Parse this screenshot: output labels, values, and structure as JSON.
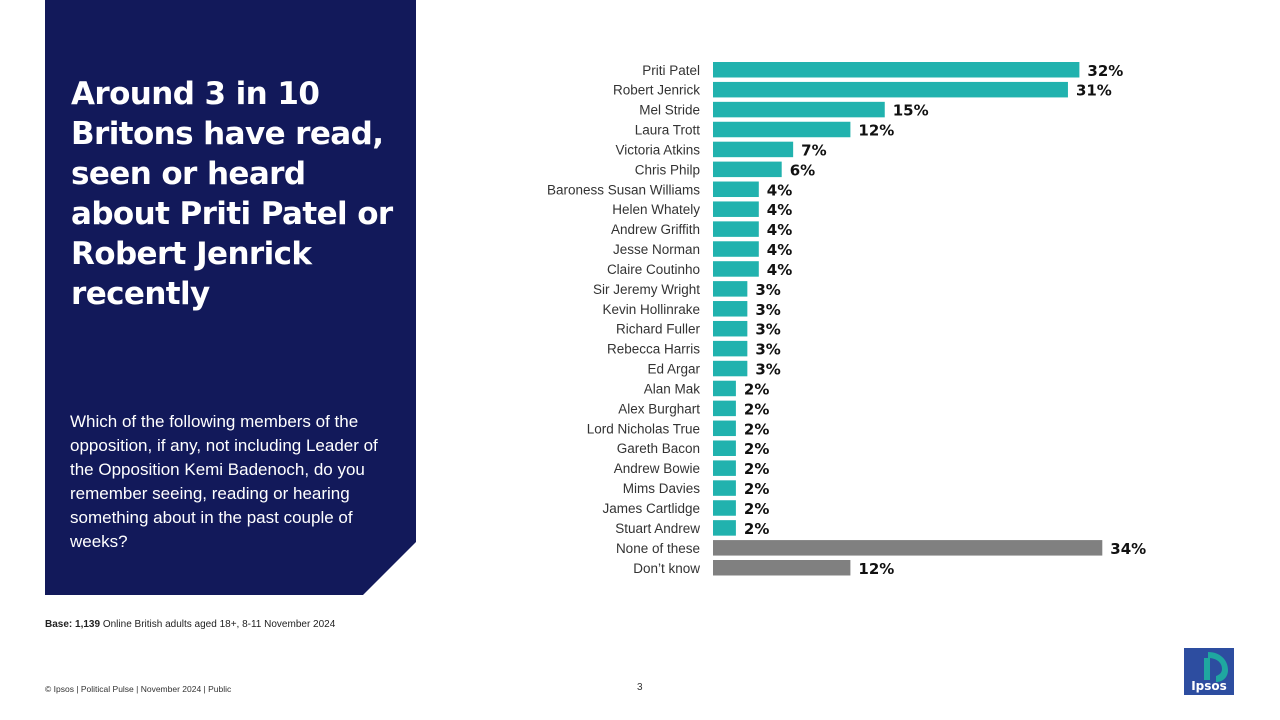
{
  "headline": "Around 3 in 10 Britons have read, seen or heard about Priti Patel or Robert Jenrick recently",
  "question": "Which of the following members of the opposition, if any, not including Leader of the Opposition Kemi Badenoch, do you remember seeing, reading or hearing something about in the past couple of weeks?",
  "base": {
    "label": "Base:",
    "count": "1,139",
    "text": "Online British adults aged 18+,  8-11 November 2024"
  },
  "footer": {
    "left": "© Ipsos | Political Pulse | November 2024 | Public",
    "page": "3",
    "logo_text": "Ipsos"
  },
  "colors": {
    "panel": "#12195a",
    "bar_member": "#21b2ae",
    "bar_other": "#808080",
    "logo_blue": "#2d4da0",
    "logo_green": "#1fa7a0"
  },
  "chart_data": {
    "type": "bar",
    "orientation": "horizontal",
    "value_suffix": "%",
    "xlim": [
      0,
      35
    ],
    "grid": false,
    "categories": [
      "Priti Patel",
      "Robert Jenrick",
      "Mel Stride",
      "Laura Trott",
      "Victoria Atkins",
      "Chris Philp",
      "Baroness Susan Williams",
      "Helen Whately",
      "Andrew Griffith",
      "Jesse Norman",
      "Claire Coutinho",
      "Sir Jeremy Wright",
      "Kevin Hollinrake",
      "Richard Fuller",
      "Rebecca Harris",
      "Ed Argar",
      "Alan Mak",
      "Alex Burghart",
      "Lord Nicholas True",
      "Gareth Bacon",
      "Andrew Bowie",
      "Mims Davies",
      "James Cartlidge",
      "Stuart Andrew",
      "None of these",
      "Don’t know"
    ],
    "values": [
      32,
      31,
      15,
      12,
      7,
      6,
      4,
      4,
      4,
      4,
      4,
      3,
      3,
      3,
      3,
      3,
      2,
      2,
      2,
      2,
      2,
      2,
      2,
      2,
      34,
      12
    ],
    "bar_groups": [
      "member",
      "member",
      "member",
      "member",
      "member",
      "member",
      "member",
      "member",
      "member",
      "member",
      "member",
      "member",
      "member",
      "member",
      "member",
      "member",
      "member",
      "member",
      "member",
      "member",
      "member",
      "member",
      "member",
      "member",
      "other",
      "other"
    ]
  }
}
